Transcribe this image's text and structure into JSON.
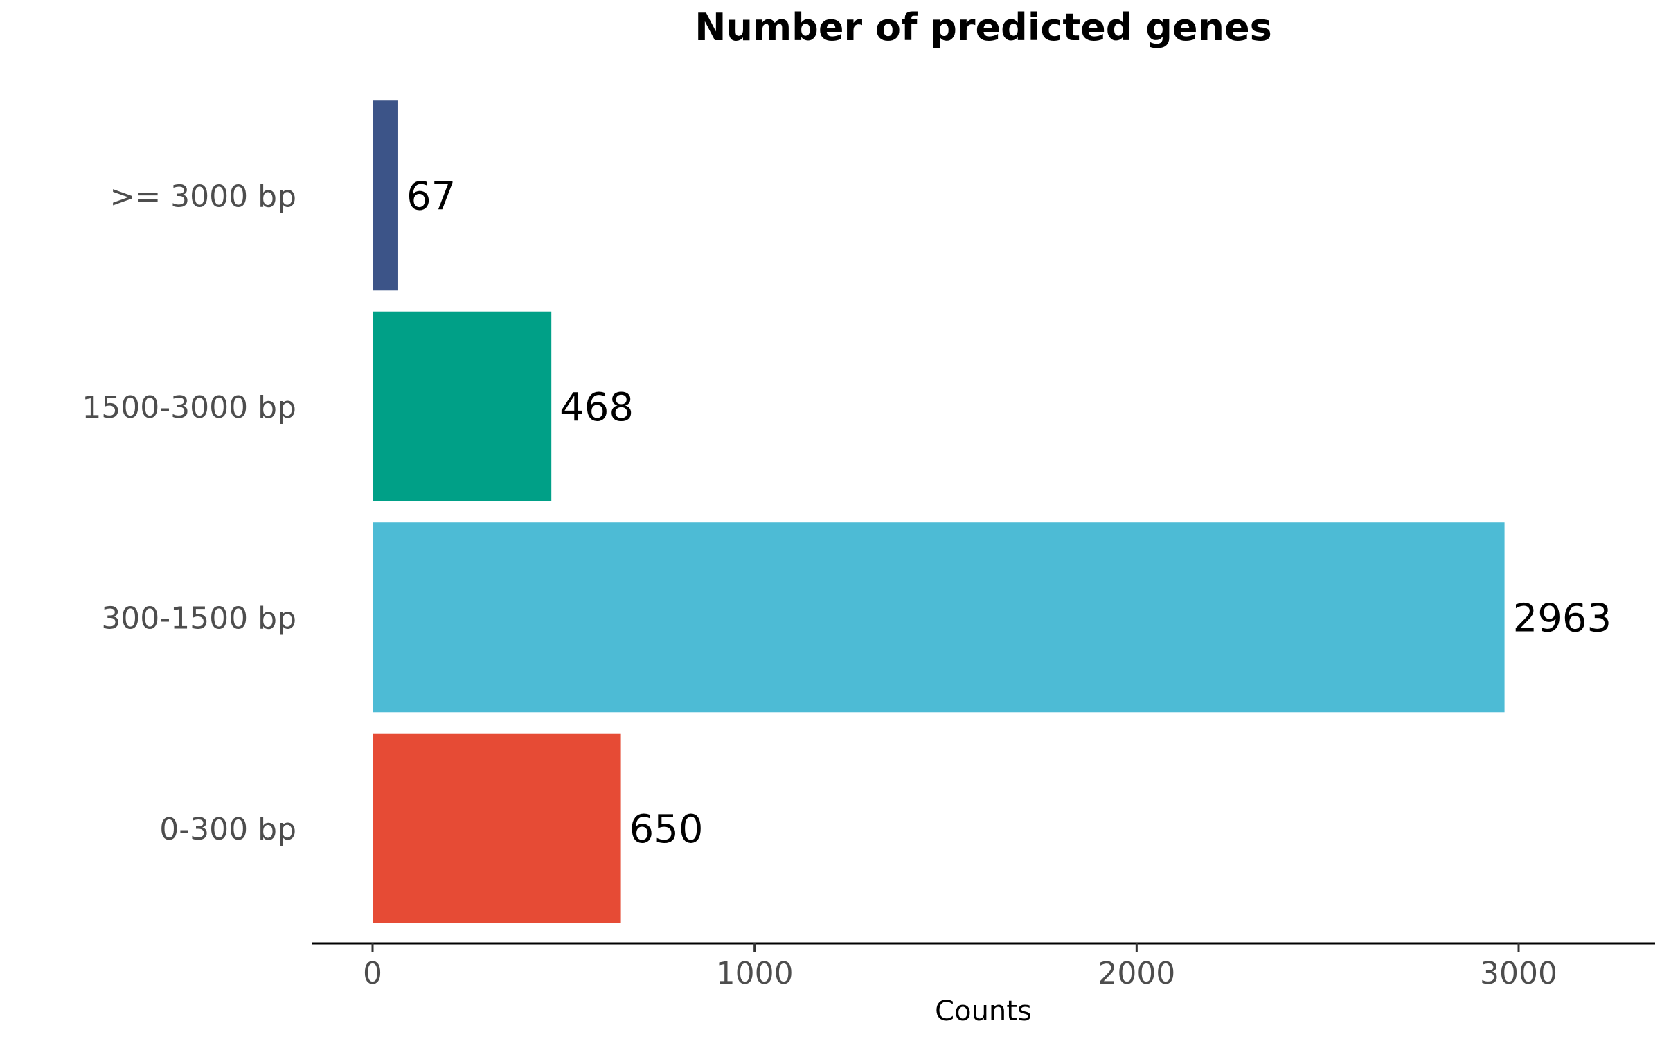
{
  "chart_data": {
    "type": "bar",
    "orientation": "horizontal",
    "title": "Number of predicted genes",
    "xlabel": "Counts",
    "ylabel": "",
    "categories": [
      ">= 3000 bp",
      "1500-3000 bp",
      "300-1500 bp",
      "0-300 bp"
    ],
    "values": [
      67,
      468,
      2963,
      650
    ],
    "data_labels": [
      "67",
      "468",
      "2963",
      "650"
    ],
    "colors": [
      "#3c5488",
      "#00a087",
      "#4dbbd5",
      "#e64b35"
    ],
    "x_ticks": [
      0,
      1000,
      2000,
      3000
    ],
    "x_tick_labels": [
      "0",
      "1000",
      "2000",
      "3000"
    ],
    "xlim": [
      -160,
      3350
    ],
    "grid": false,
    "legend": "none"
  }
}
